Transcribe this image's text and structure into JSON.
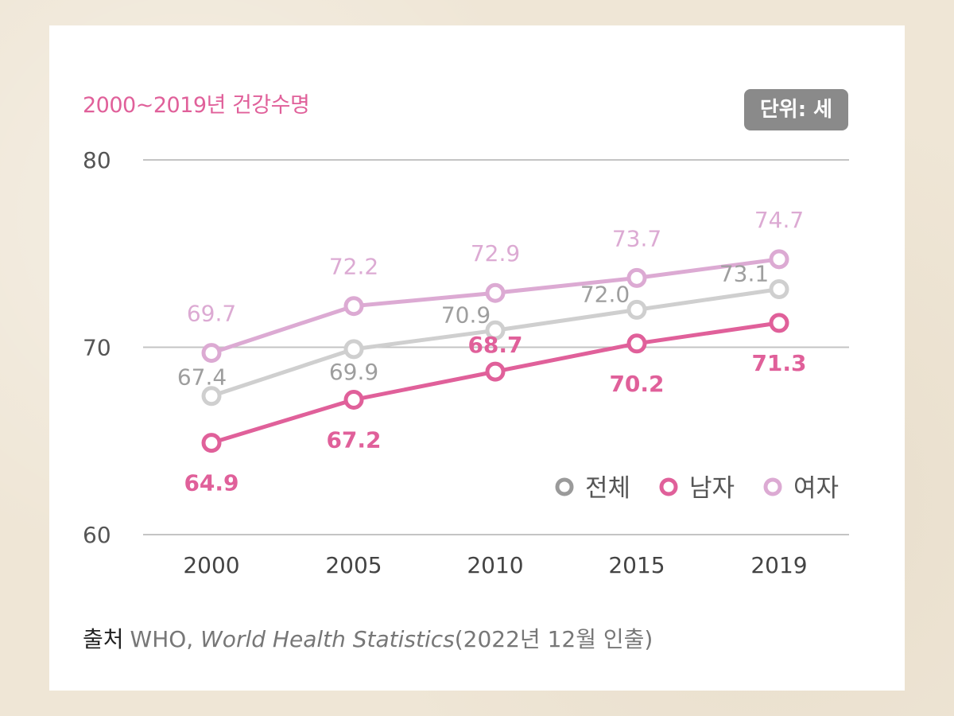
{
  "chart_data": {
    "type": "line",
    "title": "2000~2019년 건강수명",
    "unit_label": "단위: 세",
    "categories": [
      "2000",
      "2005",
      "2010",
      "2015",
      "2019"
    ],
    "ylim": [
      60,
      80
    ],
    "yticks": [
      60,
      70,
      80
    ],
    "ytick_labels": [
      "60",
      "70",
      "80"
    ],
    "grid": true,
    "legend_position": "bottom-right",
    "series": [
      {
        "name": "여자",
        "color": "#dcaad3",
        "values": [
          69.7,
          72.2,
          72.9,
          73.7,
          74.7
        ],
        "labels": [
          "69.7",
          "72.2",
          "72.9",
          "73.7",
          "74.7"
        ],
        "label_side": "above"
      },
      {
        "name": "전체",
        "color": "#cfcfcf",
        "values": [
          67.4,
          69.9,
          70.9,
          72.0,
          73.1
        ],
        "labels": [
          "67.4",
          "69.9",
          "70.9",
          "72.0",
          "73.1"
        ],
        "label_side": "mixed"
      },
      {
        "name": "남자",
        "color": "#e0609a",
        "values": [
          64.9,
          67.2,
          68.7,
          70.2,
          71.3
        ],
        "labels": [
          "64.9",
          "67.2",
          "68.7",
          "70.2",
          "71.3"
        ],
        "label_side": "below"
      }
    ],
    "legend": [
      {
        "name": "전체",
        "color": "#9a9a9a"
      },
      {
        "name": "남자",
        "color": "#e0609a"
      },
      {
        "name": "여자",
        "color": "#dcaad3"
      }
    ]
  },
  "source": {
    "label": "출처",
    "org": "WHO,",
    "publication": "World Health Statistics",
    "date": "(2022년 12월 인출)"
  }
}
